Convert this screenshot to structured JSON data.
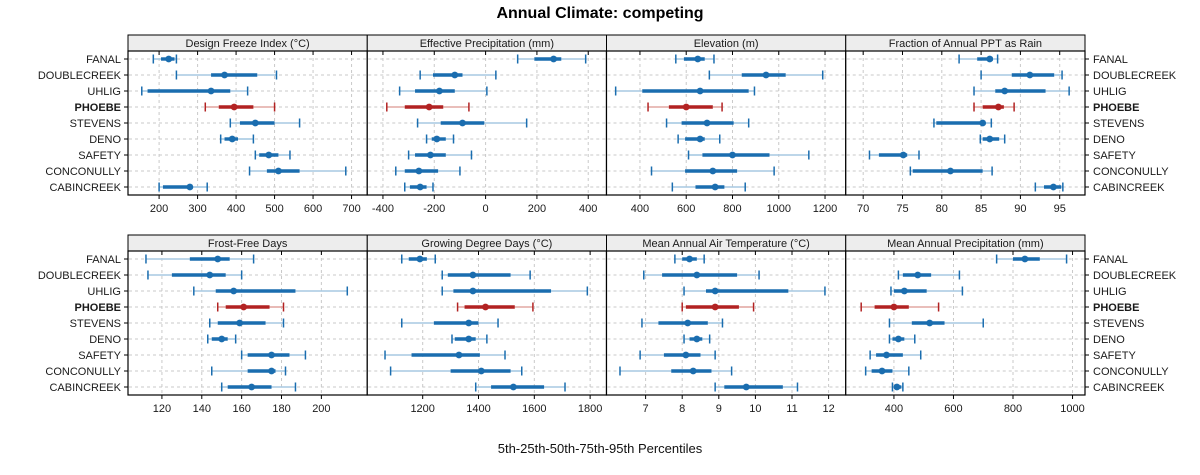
{
  "title": "Annual Climate: competing",
  "caption": "5th-25th-50th-75th-95th Percentiles",
  "sites": [
    "FANAL",
    "DOUBLECREEK",
    "UHLIG",
    "PHOEBE",
    "STEVENS",
    "DENO",
    "SAFETY",
    "CONCONULLY",
    "CABINCREEK"
  ],
  "highlight_site": "PHOEBE",
  "percentile_labels": [
    "5th",
    "25th",
    "50th",
    "75th",
    "95th"
  ],
  "colors": {
    "blue": "#1a6daf",
    "blue_light": "#a7c9e2",
    "red": "#b22222",
    "red_light": "#e2a9a4",
    "strip_bg": "#ededed",
    "panel_bg": "#ffffff",
    "grid": "#c9c9c9",
    "border": "#000000",
    "tick_text": "#1a1a1a"
  },
  "chart_data": [
    {
      "type": "dotplot-intervals",
      "row": 0,
      "col": 0,
      "title": "Design Freeze Index (°C)",
      "xlim": [
        140,
        720
      ],
      "ticks": [
        200,
        300,
        400,
        500,
        600,
        700
      ],
      "values": [
        [
          185,
          205,
          225,
          240,
          245
        ],
        [
          245,
          335,
          370,
          455,
          505
        ],
        [
          155,
          170,
          335,
          385,
          430
        ],
        [
          320,
          355,
          395,
          445,
          500
        ],
        [
          385,
          410,
          450,
          500,
          565
        ],
        [
          360,
          370,
          390,
          405,
          445
        ],
        [
          450,
          460,
          485,
          510,
          540
        ],
        [
          435,
          480,
          510,
          565,
          685
        ],
        [
          200,
          210,
          280,
          285,
          325
        ]
      ]
    },
    {
      "type": "dotplot-intervals",
      "row": 0,
      "col": 1,
      "title": "Effective Precipitation (mm)",
      "xlim": [
        -430,
        440
      ],
      "ticks": [
        -400,
        -200,
        0,
        200,
        400
      ],
      "values": [
        [
          125,
          190,
          265,
          295,
          390
        ],
        [
          -255,
          -205,
          -120,
          -90,
          40
        ],
        [
          -335,
          -275,
          -180,
          -120,
          5
        ],
        [
          -385,
          -315,
          -220,
          -165,
          -65
        ],
        [
          -265,
          -175,
          -90,
          -5,
          160
        ],
        [
          -230,
          -210,
          -190,
          -155,
          -125
        ],
        [
          -300,
          -275,
          -215,
          -155,
          -55
        ],
        [
          -350,
          -315,
          -260,
          -185,
          -100
        ],
        [
          -315,
          -295,
          -255,
          -230,
          -205
        ]
      ]
    },
    {
      "type": "dotplot-intervals",
      "row": 0,
      "col": 2,
      "title": "Elevation (m)",
      "xlim": [
        290,
        1255
      ],
      "ticks": [
        400,
        600,
        800,
        1000,
        1200
      ],
      "values": [
        [
          555,
          590,
          650,
          680,
          720
        ],
        [
          700,
          840,
          945,
          1030,
          1190
        ],
        [
          295,
          410,
          660,
          870,
          895
        ],
        [
          435,
          525,
          600,
          715,
          755
        ],
        [
          515,
          580,
          690,
          805,
          870
        ],
        [
          565,
          595,
          660,
          680,
          745
        ],
        [
          610,
          670,
          800,
          960,
          1130
        ],
        [
          450,
          595,
          715,
          820,
          980
        ],
        [
          540,
          640,
          725,
          765,
          855
        ]
      ]
    },
    {
      "type": "dotplot-intervals",
      "row": 0,
      "col": 3,
      "title": "Fraction of Annual PPT as Rain",
      "xlim": [
        68.8,
        97.2
      ],
      "ticks": [
        70,
        75,
        80,
        85,
        90,
        95
      ],
      "values": [
        [
          82.2,
          84.5,
          86.1,
          86.5,
          87.1
        ],
        [
          85.0,
          88.9,
          91.2,
          94.3,
          95.3
        ],
        [
          84.1,
          86.8,
          88.0,
          93.2,
          96.2
        ],
        [
          84.1,
          85.2,
          87.2,
          87.9,
          89.2
        ],
        [
          79.0,
          79.3,
          85.2,
          85.5,
          86.3
        ],
        [
          84.9,
          85.2,
          86.1,
          87.3,
          88.0
        ],
        [
          70.8,
          72.0,
          75.1,
          75.6,
          77.1
        ],
        [
          76.0,
          76.3,
          81.1,
          85.2,
          86.4
        ],
        [
          91.9,
          93.0,
          94.2,
          95.2,
          95.4
        ]
      ]
    },
    {
      "type": "dotplot-intervals",
      "row": 1,
      "col": 0,
      "title": "Frost-Free Days",
      "xlim": [
        107,
        219
      ],
      "ticks": [
        120,
        140,
        160,
        180,
        200
      ],
      "values": [
        [
          112,
          134,
          148,
          154,
          166
        ],
        [
          113,
          125,
          144,
          152,
          160
        ],
        [
          136,
          147,
          156,
          187,
          213
        ],
        [
          148,
          152,
          161,
          174,
          181
        ],
        [
          144,
          148,
          159,
          172,
          181
        ],
        [
          143,
          145,
          150,
          153,
          157
        ],
        [
          160,
          163,
          175,
          184,
          192
        ],
        [
          145,
          163,
          175,
          177,
          182
        ],
        [
          150,
          153,
          165,
          175,
          187
        ]
      ]
    },
    {
      "type": "dotplot-intervals",
      "row": 1,
      "col": 1,
      "title": "Growing Degree Days (°C)",
      "xlim": [
        1030,
        1830
      ],
      "ticks": [
        1200,
        1400,
        1600,
        1800
      ],
      "values": [
        [
          1125,
          1150,
          1190,
          1215,
          1245
        ],
        [
          1270,
          1290,
          1380,
          1515,
          1585
        ],
        [
          1270,
          1310,
          1380,
          1660,
          1790
        ],
        [
          1325,
          1350,
          1425,
          1530,
          1595
        ],
        [
          1125,
          1240,
          1365,
          1400,
          1470
        ],
        [
          1305,
          1315,
          1365,
          1390,
          1430
        ],
        [
          1065,
          1160,
          1330,
          1405,
          1495
        ],
        [
          1085,
          1300,
          1410,
          1515,
          1555
        ],
        [
          1390,
          1445,
          1525,
          1635,
          1710
        ]
      ]
    },
    {
      "type": "dotplot-intervals",
      "row": 1,
      "col": 2,
      "title": "Mean Annual Air Temperature (°C)",
      "xlim": [
        6.15,
        12.25
      ],
      "ticks": [
        7,
        8,
        9,
        10,
        11,
        12
      ],
      "values": [
        [
          7.8,
          8.0,
          8.2,
          8.4,
          8.6
        ],
        [
          6.95,
          7.45,
          8.4,
          9.5,
          10.1
        ],
        [
          8.05,
          8.65,
          8.9,
          10.9,
          11.9
        ],
        [
          8.0,
          8.1,
          8.9,
          9.55,
          9.95
        ],
        [
          6.9,
          7.35,
          8.15,
          8.7,
          9.1
        ],
        [
          8.05,
          8.2,
          8.4,
          8.55,
          8.75
        ],
        [
          6.85,
          7.5,
          8.1,
          8.5,
          8.9
        ],
        [
          6.3,
          7.7,
          8.3,
          8.8,
          9.35
        ],
        [
          8.9,
          9.15,
          9.75,
          10.75,
          11.15
        ]
      ]
    },
    {
      "type": "dotplot-intervals",
      "row": 1,
      "col": 3,
      "title": "Mean Annual Precipitation (mm)",
      "xlim": [
        265,
        1015
      ],
      "ticks": [
        400,
        600,
        800,
        1000
      ],
      "values": [
        [
          745,
          800,
          840,
          890,
          980
        ],
        [
          415,
          430,
          480,
          525,
          620
        ],
        [
          390,
          400,
          435,
          510,
          630
        ],
        [
          290,
          335,
          400,
          450,
          550
        ],
        [
          385,
          460,
          520,
          570,
          700
        ],
        [
          385,
          395,
          415,
          435,
          470
        ],
        [
          320,
          340,
          375,
          430,
          490
        ],
        [
          305,
          325,
          360,
          395,
          450
        ],
        [
          395,
          400,
          410,
          425,
          430
        ]
      ]
    }
  ]
}
